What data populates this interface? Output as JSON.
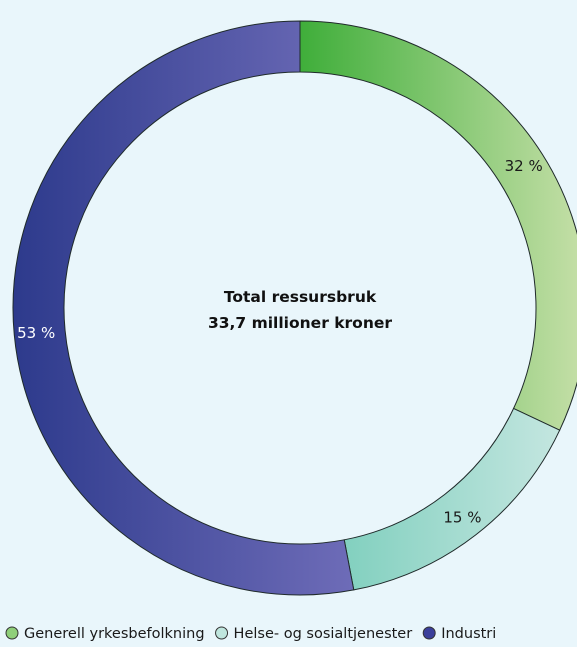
{
  "chart_data": {
    "type": "pie",
    "center_title": "Total ressursbruk",
    "center_subtitle": "33,7 millioner kroner",
    "slices": [
      {
        "name": "Generell yrkesbefolkning",
        "value": 32,
        "label": "32 %",
        "color_start": "#3fae3a",
        "color_end": "#c7e0a9",
        "legend_color": "#8fcf7a"
      },
      {
        "name": "Helse- og sosialtjenester",
        "value": 15,
        "label": "15 %",
        "color_start": "#82d0bf",
        "color_end": "#c4e6e0",
        "legend_color": "#bfe6de"
      },
      {
        "name": "Industri",
        "value": 53,
        "label": "53 %",
        "color_start": "#2d3a8c",
        "color_end": "#6e6cb8",
        "legend_color": "#3b3f9a"
      }
    ],
    "legend_position": "bottom"
  }
}
